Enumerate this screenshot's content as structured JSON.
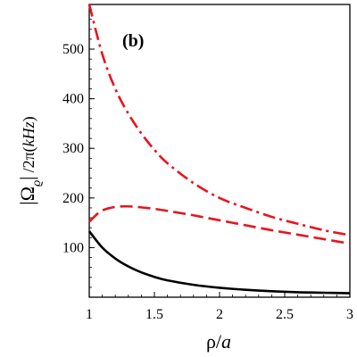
{
  "chart_data": {
    "type": "line",
    "panel_label": "(b)",
    "xlabel": "ρ/a",
    "ylabel": "|Ω_ϱ| /2π(kHz)",
    "xlim": [
      1,
      3
    ],
    "ylim": [
      0,
      590
    ],
    "x_ticks": [
      1,
      1.5,
      2,
      2.5,
      3
    ],
    "x_tick_labels": [
      "1",
      "1.5",
      "2",
      "2.5",
      "3"
    ],
    "y_ticks": [
      100,
      200,
      300,
      400,
      500
    ],
    "y_tick_labels": [
      "100",
      "200",
      "300",
      "400",
      "500"
    ],
    "grid": false,
    "legend": "none",
    "series": [
      {
        "style": "dashdot",
        "color": "#e8141e",
        "x": [
          1.0,
          1.1,
          1.2,
          1.3,
          1.4,
          1.5,
          1.6,
          1.8,
          2.0,
          2.2,
          2.4,
          2.6,
          2.8,
          3.0
        ],
        "y": [
          590,
          490,
          420,
          370,
          330,
          297,
          270,
          230,
          200,
          180,
          162,
          148,
          135,
          125
        ]
      },
      {
        "style": "dashed",
        "color": "#e8141e",
        "x": [
          1.0,
          1.05,
          1.1,
          1.2,
          1.3,
          1.4,
          1.5,
          1.6,
          1.8,
          2.0,
          2.2,
          2.4,
          2.6,
          2.8,
          3.0
        ],
        "y": [
          152,
          165,
          175,
          182,
          183,
          181,
          178,
          174,
          165,
          155,
          145,
          135,
          126,
          117,
          108
        ]
      },
      {
        "style": "solid",
        "color": "#000000",
        "x": [
          1.0,
          1.1,
          1.2,
          1.3,
          1.4,
          1.5,
          1.6,
          1.8,
          2.0,
          2.2,
          2.4,
          2.6,
          2.8,
          3.0
        ],
        "y": [
          133,
          100,
          78,
          62,
          50,
          41,
          34,
          25,
          19,
          15,
          12,
          10,
          9,
          8
        ]
      }
    ]
  }
}
